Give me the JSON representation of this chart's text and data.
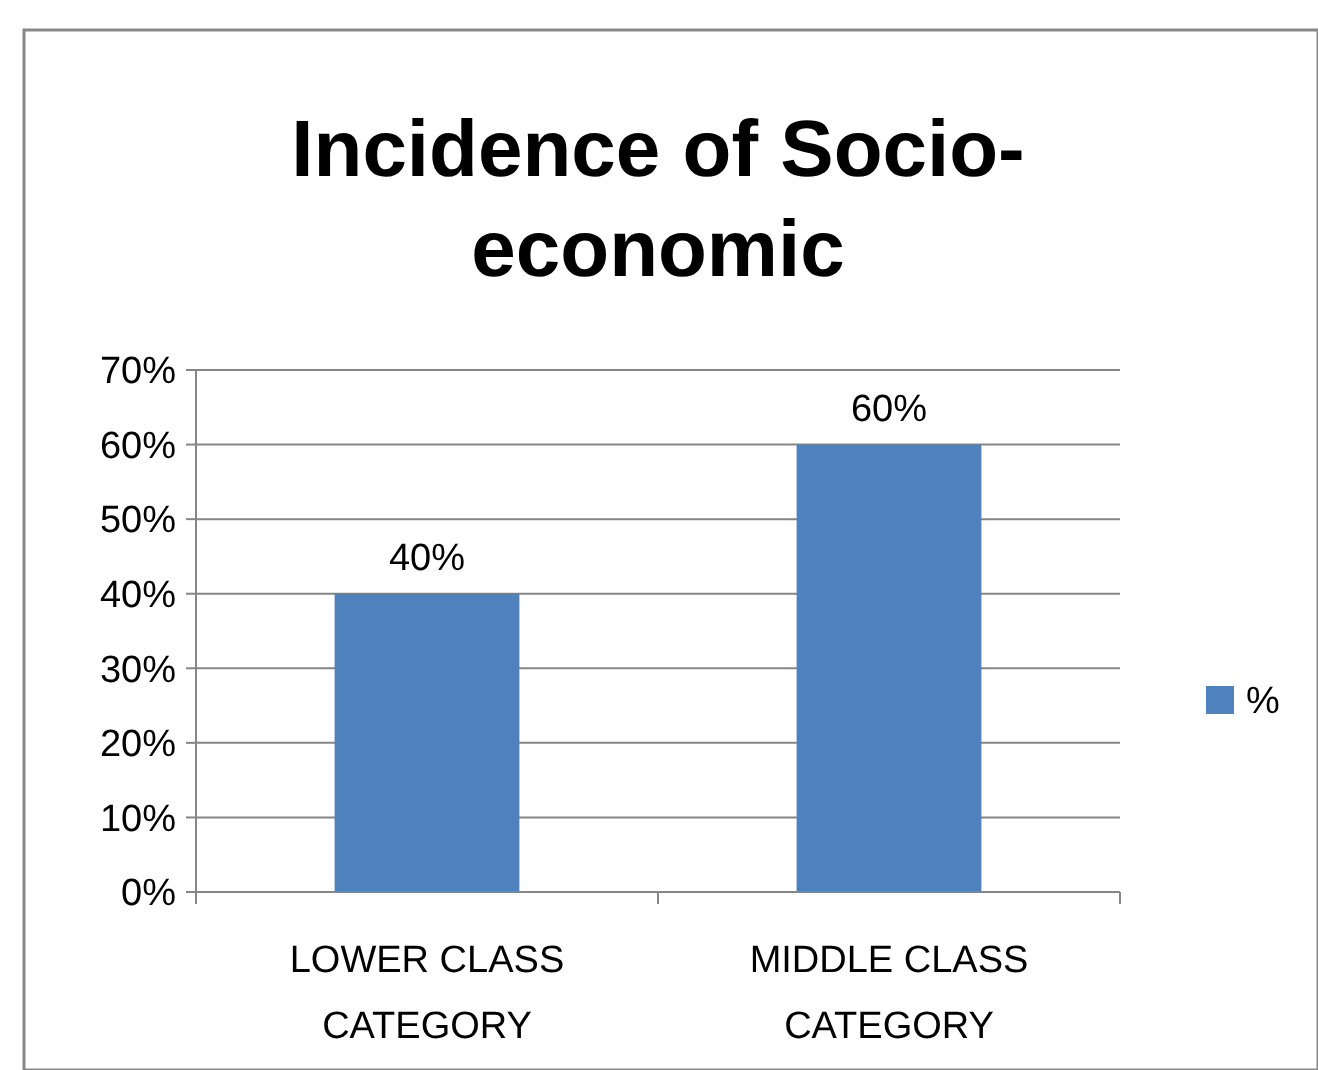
{
  "chart_data": {
    "type": "bar",
    "title": "Incidence of Socio-economic",
    "categories": [
      "LOWER CLASS CATEGORY",
      "MIDDLE CLASS CATEGORY"
    ],
    "series": [
      {
        "name": "%",
        "color": "#4f81bd",
        "values": [
          40,
          60
        ],
        "value_labels": [
          "40%",
          "60%"
        ]
      }
    ],
    "ylim": [
      0,
      70
    ],
    "yticks": [
      {
        "value": 0,
        "label": "0%"
      },
      {
        "value": 10,
        "label": "10%"
      },
      {
        "value": 20,
        "label": "20%"
      },
      {
        "value": 30,
        "label": "30%"
      },
      {
        "value": 40,
        "label": "40%"
      },
      {
        "value": 50,
        "label": "50%"
      },
      {
        "value": 60,
        "label": "60%"
      },
      {
        "value": 70,
        "label": "70%"
      }
    ],
    "grid": "y",
    "legend": "right"
  }
}
